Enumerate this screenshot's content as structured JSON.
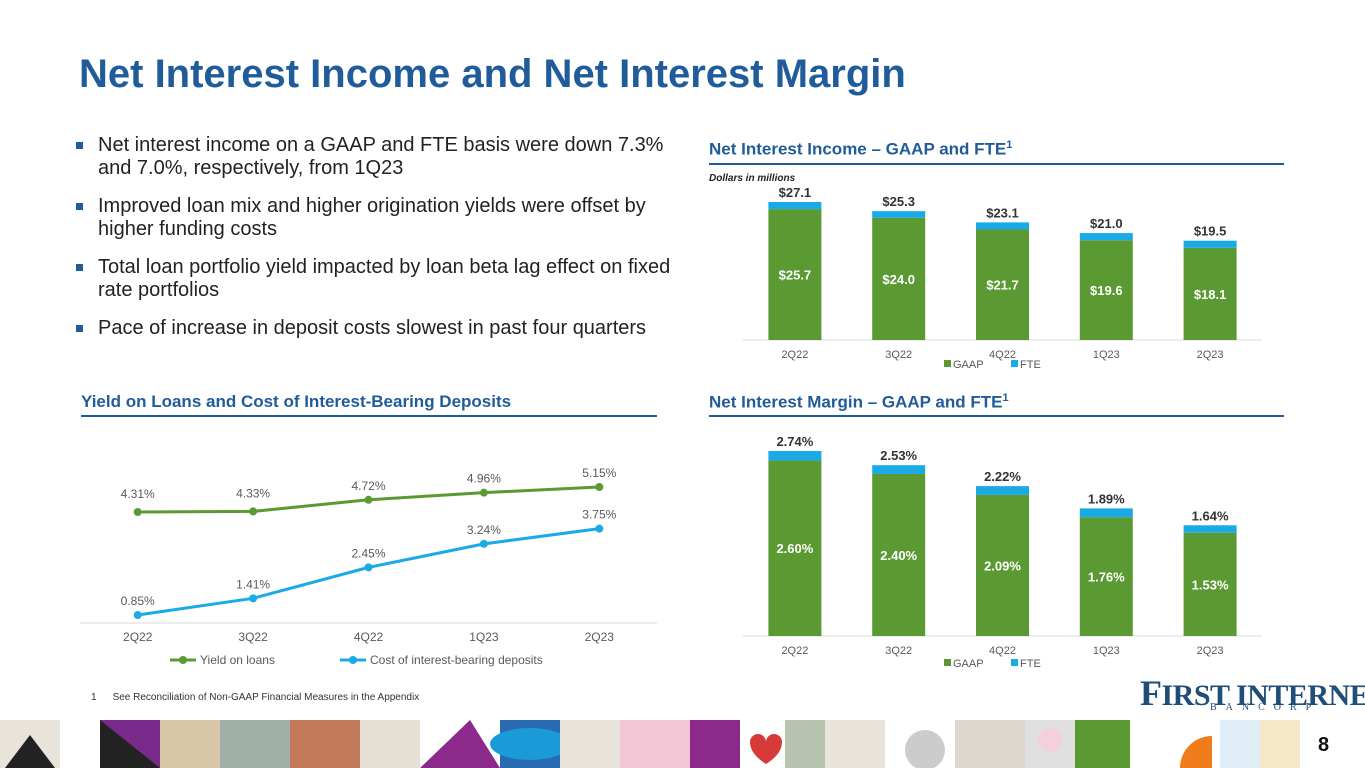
{
  "title": "Net Interest Income and Net Interest Margin",
  "bullets": [
    "Net interest income on a GAAP and FTE basis were down 7.3% and 7.0%, respectively, from 1Q23",
    "Improved loan mix and higher origination yields were offset by higher funding costs",
    "Total loan portfolio yield impacted by loan beta lag effect on fixed rate portfolios",
    "Pace of increase in deposit costs slowest in past four quarters"
  ],
  "sections": {
    "nii": "Net Interest Income – GAAP and FTE",
    "nim": "Net Interest Margin – GAAP and FTE",
    "yield": "Yield on Loans and Cost of Interest-Bearing Deposits",
    "sup": "1"
  },
  "units_note": "Dollars in millions",
  "footnote": {
    "number": "1",
    "text": "See Reconciliation of Non-GAAP Financial Measures in the Appendix"
  },
  "logo": {
    "main_first": "F",
    "main_rest": "IRST INTERNET",
    "sub": "BANCORP"
  },
  "page_number": "8",
  "colors": {
    "green": "#5b9a32",
    "blue": "#1aabe7",
    "navy": "#1f5c99"
  },
  "chart_data": [
    {
      "id": "nii",
      "type": "bar",
      "stacked": true,
      "categories": [
        "2Q22",
        "3Q22",
        "4Q22",
        "1Q23",
        "2Q23"
      ],
      "series": [
        {
          "name": "GAAP",
          "values": [
            25.7,
            24.0,
            21.7,
            19.6,
            18.1
          ],
          "labels": [
            "$25.7",
            "$24.0",
            "$21.7",
            "$19.6",
            "$18.1"
          ],
          "color": "#5b9a32"
        },
        {
          "name": "FTE",
          "values": [
            1.4,
            1.3,
            1.4,
            1.4,
            1.4
          ],
          "color": "#1aabe7"
        }
      ],
      "totals": [
        27.1,
        25.3,
        23.1,
        21.0,
        19.5
      ],
      "total_labels": [
        "$27.1",
        "$25.3",
        "$23.1",
        "$21.0",
        "$19.5"
      ],
      "ylim": [
        0,
        27.1
      ],
      "legend": "bottom"
    },
    {
      "id": "nim",
      "type": "bar",
      "stacked": true,
      "categories": [
        "2Q22",
        "3Q22",
        "4Q22",
        "1Q23",
        "2Q23"
      ],
      "series": [
        {
          "name": "GAAP",
          "values": [
            2.6,
            2.4,
            2.09,
            1.76,
            1.53
          ],
          "labels": [
            "2.60%",
            "2.40%",
            "2.09%",
            "1.76%",
            "1.53%"
          ],
          "color": "#5b9a32"
        },
        {
          "name": "FTE",
          "values": [
            0.14,
            0.13,
            0.13,
            0.13,
            0.11
          ],
          "color": "#1aabe7"
        }
      ],
      "totals": [
        2.74,
        2.53,
        2.22,
        1.89,
        1.64
      ],
      "total_labels": [
        "2.74%",
        "2.53%",
        "2.22%",
        "1.89%",
        "1.64%"
      ],
      "ylim": [
        0,
        2.74
      ],
      "legend": "bottom"
    },
    {
      "id": "yield",
      "type": "line",
      "categories": [
        "2Q22",
        "3Q22",
        "4Q22",
        "1Q23",
        "2Q23"
      ],
      "series": [
        {
          "name": "Yield on loans",
          "values": [
            4.31,
            4.33,
            4.72,
            4.96,
            5.15
          ],
          "labels": [
            "4.31%",
            "4.33%",
            "4.72%",
            "4.96%",
            "5.15%"
          ],
          "color": "#5b9a32"
        },
        {
          "name": "Cost of interest-bearing deposits",
          "values": [
            0.85,
            1.41,
            2.45,
            3.24,
            3.75
          ],
          "labels": [
            "0.85%",
            "1.41%",
            "2.45%",
            "3.24%",
            "3.75%"
          ],
          "color": "#1aabe7"
        }
      ],
      "legend": "bottom"
    }
  ]
}
